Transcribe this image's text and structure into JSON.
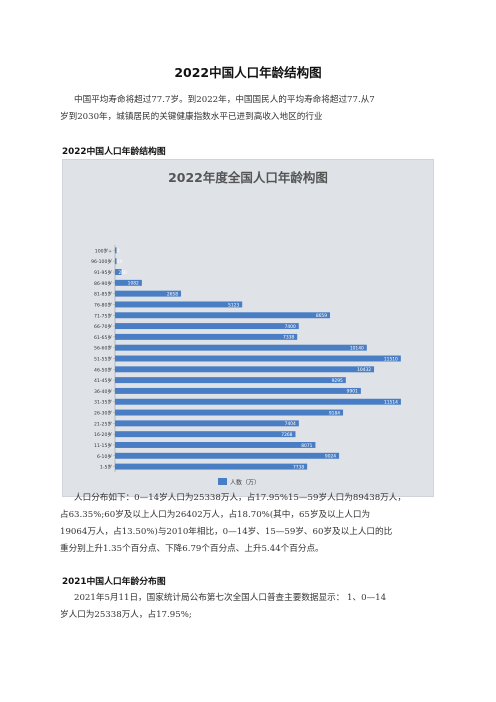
{
  "document": {
    "title": "2022中国人口年龄结构图",
    "intro_lines": [
      "中国平均寿命将超过77.7岁。到2022年，中国国民人的平均寿命将超过77.从7",
      "岁到2030年，城镇居民的关键健康指数水平已进到高收入地区的行业"
    ],
    "section1_heading": "2022中国人口年龄结构图",
    "population_lines": [
      "人口分布如下：0—14岁人口为25338万人，占17.95%15—59岁人口为89438万人，",
      "占63.35%;60岁及以上人口为26402万人，占18.70%(其中，65岁及以上人口为",
      "19064万人，占13.50%)与2010年相比，0—14岁、15—59岁、60岁及以上人口的比",
      "重分别上升1.35个百分点、下降6.79个百分点、上升5.44个百分点。"
    ],
    "section2_heading": "2021中国人口年龄分布图",
    "census_lines": [
      "2021年5月11日，国家统计局公布第七次全国人口普查主要数据显示： 1、0—14",
      "岁人口为25338万人，占17.95%;"
    ]
  },
  "chart_data": {
    "type": "bar",
    "orientation": "horizontal",
    "title": "2022年度全国人口年龄构图",
    "categories": [
      "100岁+",
      "96-100岁",
      "91-95岁",
      "86-90岁",
      "81-85岁",
      "76-80岁",
      "71-75岁",
      "66-70岁",
      "61-65岁",
      "56-60岁",
      "51-55岁",
      "46-50岁",
      "41-45岁",
      "36-40岁",
      "31-35岁",
      "26-30岁",
      "21-25岁",
      "16-20岁",
      "11-15岁",
      "6-10岁",
      "1-5岁"
    ],
    "series": [
      {
        "name": "人数（万）",
        "values": [
          4,
          40,
          260,
          1082,
          2658,
          5123,
          8659,
          7400,
          7338,
          10140,
          11510,
          10432,
          9295,
          9901,
          11514,
          9184,
          7404,
          7268,
          8071,
          9024,
          7738
        ]
      }
    ],
    "xlim": [
      0,
      12000
    ],
    "grid": false,
    "legend": "bottom",
    "bar_color": "#4a7ec4",
    "background_color": "#dfe3e8"
  }
}
